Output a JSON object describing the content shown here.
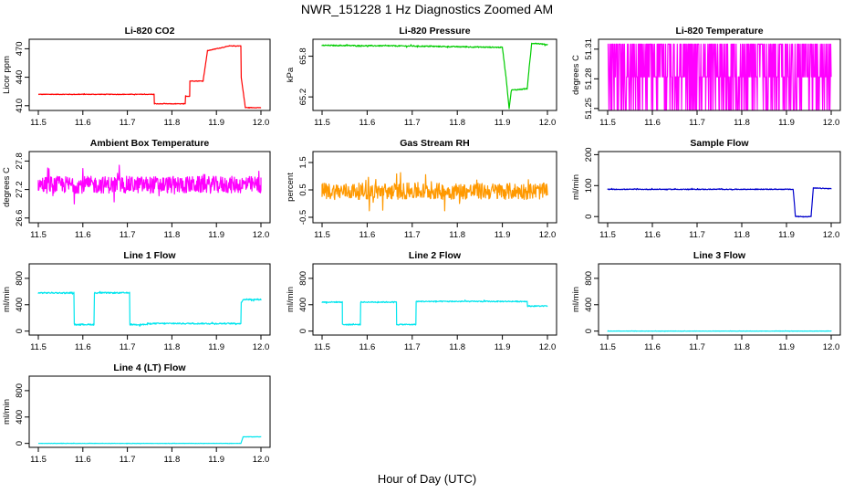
{
  "title": "NWR_151228  1 Hz Diagnostics Zoomed AM",
  "x_axis_title": "Hour of Day (UTC)",
  "chart_data": [
    {
      "type": "line",
      "title": "Li-820 CO2",
      "ylabel": "Licor ppm",
      "color": "#ff0000",
      "xlim": [
        11.5,
        12.0
      ],
      "ylim": [
        405,
        480
      ],
      "x_ticks": [
        "11.5",
        "11.6",
        "11.7",
        "11.8",
        "11.9",
        "12.0"
      ],
      "y_ticks": [
        410,
        440,
        470
      ],
      "x": [
        11.5,
        11.76,
        11.76,
        11.83,
        11.83,
        11.84,
        11.84,
        11.87,
        11.87,
        11.88,
        11.88,
        11.93,
        11.93,
        11.955,
        11.955,
        11.965,
        11.965,
        12.0
      ],
      "y": [
        422,
        422,
        412,
        412,
        420,
        420,
        436,
        436,
        436,
        468,
        468,
        473,
        473,
        473,
        442,
        408,
        408,
        408
      ],
      "noise": 0.3
    },
    {
      "type": "line",
      "title": "Li-820 Pressure",
      "ylabel": "kPa",
      "color": "#00cc00",
      "xlim": [
        11.5,
        12.0
      ],
      "ylim": [
        65.0,
        66.05
      ],
      "x_ticks": [
        "11.5",
        "11.6",
        "11.7",
        "11.8",
        "11.9",
        "12.0"
      ],
      "y_ticks": [
        65.2,
        65.8
      ],
      "x": [
        11.5,
        11.7,
        11.9,
        11.908,
        11.915,
        11.92,
        11.955,
        11.965,
        11.975,
        12.0
      ],
      "y": [
        65.96,
        65.95,
        65.93,
        65.5,
        65.03,
        65.3,
        65.32,
        65.99,
        65.99,
        65.97
      ],
      "noise": 0.008
    },
    {
      "type": "line",
      "title": "Li-820 Temperature",
      "ylabel": "degrees C",
      "color": "#ff00ff",
      "xlim": [
        11.5,
        12.0
      ],
      "ylim": [
        51.248,
        51.32
      ],
      "x_ticks": [
        "11.5",
        "11.6",
        "11.7",
        "11.8",
        "11.9",
        "12.0"
      ],
      "y_ticks": [
        51.25,
        51.28,
        51.31
      ],
      "x": [
        11.5,
        12.0
      ],
      "y": [
        51.282,
        51.282
      ],
      "levels": [
        51.249,
        51.282,
        51.315
      ],
      "noise": 0
    },
    {
      "type": "line",
      "title": "Ambient Box Temperature",
      "ylabel": "degrees C",
      "color": "#ff00ff",
      "xlim": [
        11.5,
        12.0
      ],
      "ylim": [
        26.5,
        28.0
      ],
      "x_ticks": [
        "11.5",
        "11.6",
        "11.7",
        "11.8",
        "11.9",
        "12.0"
      ],
      "y_ticks": [
        26.6,
        27.2,
        27.8
      ],
      "x": [
        11.5,
        12.0
      ],
      "y": [
        27.3,
        27.3
      ],
      "noise": 0.18
    },
    {
      "type": "line",
      "title": "Gas Stream RH",
      "ylabel": "percent",
      "color": "#ff9900",
      "xlim": [
        11.5,
        12.0
      ],
      "ylim": [
        -0.7,
        1.9
      ],
      "x_ticks": [
        "11.5",
        "11.6",
        "11.7",
        "11.8",
        "11.9",
        "12.0"
      ],
      "y_ticks": [
        -0.5,
        0.5,
        1.5
      ],
      "x": [
        11.5,
        12.0
      ],
      "y": [
        0.45,
        0.45
      ],
      "noise": 0.3
    },
    {
      "type": "line",
      "title": "Sample Flow",
      "ylabel": "ml/min",
      "color": "#0000cc",
      "xlim": [
        11.5,
        12.0
      ],
      "ylim": [
        -20,
        210
      ],
      "x_ticks": [
        "11.5",
        "11.6",
        "11.7",
        "11.8",
        "11.9",
        "12.0"
      ],
      "y_ticks": [
        0,
        100,
        200
      ],
      "x": [
        11.5,
        11.915,
        11.92,
        11.955,
        11.96,
        12.0
      ],
      "y": [
        88,
        88,
        0,
        0,
        92,
        90
      ],
      "noise": 1.2
    },
    {
      "type": "line",
      "title": "Line 1 Flow",
      "ylabel": "ml/min",
      "color": "#00e5ee",
      "xlim": [
        11.5,
        12.0
      ],
      "ylim": [
        -60,
        1020
      ],
      "x_ticks": [
        "11.5",
        "11.6",
        "11.7",
        "11.8",
        "11.9",
        "12.0"
      ],
      "y_ticks": [
        0,
        400,
        800
      ],
      "x": [
        11.5,
        11.58,
        11.58,
        11.625,
        11.625,
        11.705,
        11.705,
        11.745,
        11.745,
        11.955,
        11.955,
        11.96,
        12.0
      ],
      "y": [
        580,
        580,
        100,
        100,
        580,
        580,
        100,
        100,
        115,
        115,
        430,
        480,
        480
      ],
      "noise": 10
    },
    {
      "type": "line",
      "title": "Line 2 Flow",
      "ylabel": "ml/min",
      "color": "#00e5ee",
      "xlim": [
        11.5,
        12.0
      ],
      "ylim": [
        -60,
        1020
      ],
      "x_ticks": [
        "11.5",
        "11.6",
        "11.7",
        "11.8",
        "11.9",
        "12.0"
      ],
      "y_ticks": [
        0,
        400,
        800
      ],
      "x": [
        11.5,
        11.545,
        11.545,
        11.585,
        11.585,
        11.665,
        11.665,
        11.708,
        11.708,
        11.955,
        11.955,
        11.96,
        12.0
      ],
      "y": [
        440,
        440,
        100,
        100,
        440,
        440,
        100,
        100,
        450,
        450,
        380,
        380,
        380
      ],
      "noise": 8
    },
    {
      "type": "line",
      "title": "Line 3 Flow",
      "ylabel": "ml/min",
      "color": "#00e5ee",
      "xlim": [
        11.5,
        12.0
      ],
      "ylim": [
        -60,
        1020
      ],
      "x_ticks": [
        "11.5",
        "11.6",
        "11.7",
        "11.8",
        "11.9",
        "12.0"
      ],
      "y_ticks": [
        0,
        400,
        800
      ],
      "x": [
        11.5,
        12.0
      ],
      "y": [
        0,
        0
      ],
      "noise": 2
    },
    {
      "type": "line",
      "title": "Line 4 (LT) Flow",
      "ylabel": "ml/min",
      "color": "#00e5ee",
      "xlim": [
        11.5,
        12.0
      ],
      "ylim": [
        -60,
        1020
      ],
      "x_ticks": [
        "11.5",
        "11.6",
        "11.7",
        "11.8",
        "11.9",
        "12.0"
      ],
      "y_ticks": [
        0,
        400,
        800
      ],
      "x": [
        11.5,
        11.955,
        11.96,
        12.0
      ],
      "y": [
        0,
        0,
        100,
        100
      ],
      "noise": 2
    }
  ]
}
